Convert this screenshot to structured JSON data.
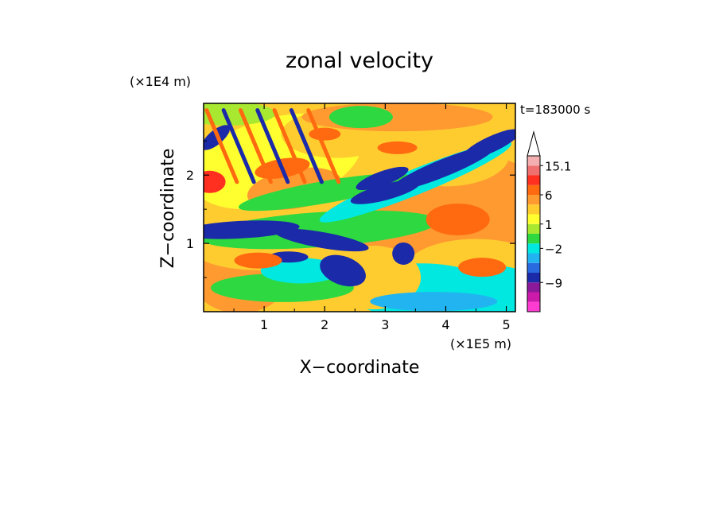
{
  "chart_data": {
    "type": "heatmap",
    "title": "zonal velocity",
    "xlabel": "X−coordinate",
    "ylabel": "Z−coordinate",
    "x_unit": "(×1E5 m)",
    "y_unit": "(×1E4 m)",
    "time_label": "t=183000 s",
    "xlim": [
      0.0,
      5.15
    ],
    "ylim": [
      0.0,
      3.05
    ],
    "x_ticks": [
      {
        "value": 1,
        "label": "1"
      },
      {
        "value": 2,
        "label": "2"
      },
      {
        "value": 3,
        "label": "3"
      },
      {
        "value": 4,
        "label": "4"
      },
      {
        "value": 5,
        "label": "5"
      }
    ],
    "y_ticks": [
      {
        "value": 1,
        "label": "1"
      },
      {
        "value": 2,
        "label": "2"
      }
    ],
    "colorbar": {
      "colors": [
        "#ff3cd2",
        "#cc1aaa",
        "#8a1a9a",
        "#1a2aa8",
        "#2a6ae0",
        "#22b4f0",
        "#00e8e0",
        "#2ed840",
        "#a8e830",
        "#ffff30",
        "#ffcc30",
        "#ff9a30",
        "#ff6a10",
        "#ff3020",
        "#f07070",
        "#f4b0b0"
      ],
      "labels": [
        {
          "value": "15.1",
          "at": 15
        },
        {
          "value": "6",
          "at": 12
        },
        {
          "value": "1",
          "at": 9
        },
        {
          "value": "−2",
          "at": 6.5
        },
        {
          "value": "−9",
          "at": 3
        }
      ]
    }
  }
}
